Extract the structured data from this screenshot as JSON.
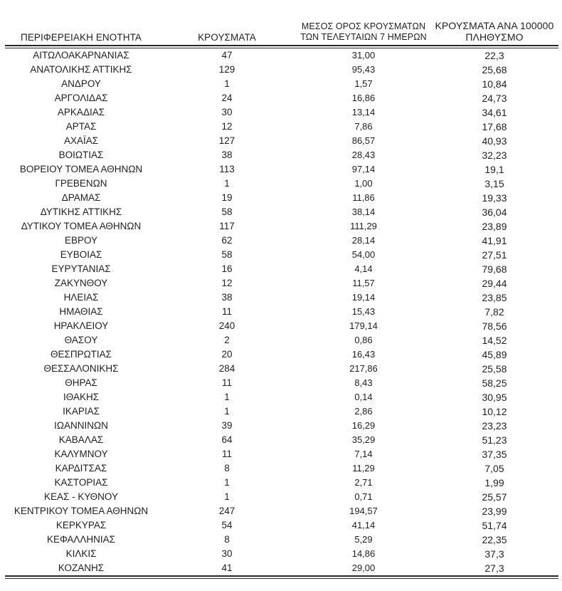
{
  "table": {
    "columns": [
      {
        "name": "region",
        "label": "ΠΕΡΙΦΕΡΕΙΑΚΗ ΕΝΟΤΗΤΑ"
      },
      {
        "name": "cases",
        "label": "ΚΡΟΥΣΜΑΤΑ"
      },
      {
        "name": "avg_7day",
        "line1": "ΜΕΣΟΣ ΟΡΟΣ ΚΡΟΥΣΜΑΤΩΝ",
        "line2": "ΤΩΝ ΤΕΛΕΥΤΑΙΩΝ 7 ΗΜΕΡΩΝ"
      },
      {
        "name": "per_100k",
        "line1": "ΚΡΟΥΣΜΑΤΑ ΑΝΑ 100000",
        "line2": "ΠΛΗΘΥΣΜΟ"
      }
    ],
    "rows": [
      [
        "ΑΙΤΩΛΟΑΚΑΡΝΑΝΙΑΣ",
        "47",
        "31,00",
        "22,3"
      ],
      [
        "ΑΝΑΤΟΛΙΚΗΣ ΑΤΤΙΚΗΣ",
        "129",
        "95,43",
        "25,68"
      ],
      [
        "ΑΝΔΡΟΥ",
        "1",
        "1,57",
        "10,84"
      ],
      [
        "ΑΡΓΟΛΙΔΑΣ",
        "24",
        "16,86",
        "24,73"
      ],
      [
        "ΑΡΚΑΔΙΑΣ",
        "30",
        "13,14",
        "34,61"
      ],
      [
        "ΑΡΤΑΣ",
        "12",
        "7,86",
        "17,68"
      ],
      [
        "ΑΧΑΪΑΣ",
        "127",
        "86,57",
        "40,93"
      ],
      [
        "ΒΟΙΩΤΙΑΣ",
        "38",
        "28,43",
        "32,23"
      ],
      [
        "ΒΟΡΕΙΟΥ ΤΟΜΕΑ ΑΘΗΝΩΝ",
        "113",
        "97,14",
        "19,1"
      ],
      [
        "ΓΡΕΒΕΝΩΝ",
        "1",
        "1,00",
        "3,15"
      ],
      [
        "ΔΡΑΜΑΣ",
        "19",
        "11,86",
        "19,33"
      ],
      [
        "ΔΥΤΙΚΗΣ ΑΤΤΙΚΗΣ",
        "58",
        "38,14",
        "36,04"
      ],
      [
        "ΔΥΤΙΚΟΥ ΤΟΜΕΑ ΑΘΗΝΩΝ",
        "117",
        "111,29",
        "23,89"
      ],
      [
        "ΕΒΡΟΥ",
        "62",
        "28,14",
        "41,91"
      ],
      [
        "ΕΥΒΟΙΑΣ",
        "58",
        "54,00",
        "27,51"
      ],
      [
        "ΕΥΡΥΤΑΝΙΑΣ",
        "16",
        "4,14",
        "79,68"
      ],
      [
        "ΖΑΚΥΝΘΟΥ",
        "12",
        "11,57",
        "29,44"
      ],
      [
        "ΗΛΕΙΑΣ",
        "38",
        "19,14",
        "23,85"
      ],
      [
        "ΗΜΑΘΙΑΣ",
        "11",
        "15,43",
        "7,82"
      ],
      [
        "ΗΡΑΚΛΕΙΟΥ",
        "240",
        "179,14",
        "78,56"
      ],
      [
        "ΘΑΣΟΥ",
        "2",
        "0,86",
        "14,52"
      ],
      [
        "ΘΕΣΠΡΩΤΙΑΣ",
        "20",
        "16,43",
        "45,89"
      ],
      [
        "ΘΕΣΣΑΛΟΝΙΚΗΣ",
        "284",
        "217,86",
        "25,58"
      ],
      [
        "ΘΗΡΑΣ",
        "11",
        "8,43",
        "58,25"
      ],
      [
        "ΙΘΑΚΗΣ",
        "1",
        "0,14",
        "30,95"
      ],
      [
        "ΙΚΑΡΙΑΣ",
        "1",
        "2,86",
        "10,12"
      ],
      [
        "ΙΩΑΝΝΙΝΩΝ",
        "39",
        "16,29",
        "23,23"
      ],
      [
        "ΚΑΒΑΛΑΣ",
        "64",
        "35,29",
        "51,23"
      ],
      [
        "ΚΑΛΥΜΝΟΥ",
        "11",
        "7,14",
        "37,35"
      ],
      [
        "ΚΑΡΔΙΤΣΑΣ",
        "8",
        "11,29",
        "7,05"
      ],
      [
        "ΚΑΣΤΟΡΙΑΣ",
        "1",
        "2,71",
        "1,99"
      ],
      [
        "ΚΕΑΣ - ΚΥΘΝΟΥ",
        "1",
        "0,71",
        "25,57"
      ],
      [
        "ΚΕΝΤΡΙΚΟΥ ΤΟΜΕΑ ΑΘΗΝΩΝ",
        "247",
        "194,57",
        "23,99"
      ],
      [
        "ΚΕΡΚΥΡΑΣ",
        "54",
        "41,14",
        "51,74"
      ],
      [
        "ΚΕΦΑΛΛΗΝΙΑΣ",
        "8",
        "5,29",
        "22,35"
      ],
      [
        "ΚΙΛΚΙΣ",
        "30",
        "14,86",
        "37,3"
      ],
      [
        "ΚΟΖΑΝΗΣ",
        "41",
        "29,00",
        "27,3"
      ]
    ]
  },
  "colors": {
    "text": "#1f1f1f",
    "rule": "#262626",
    "background": "#ffffff"
  }
}
